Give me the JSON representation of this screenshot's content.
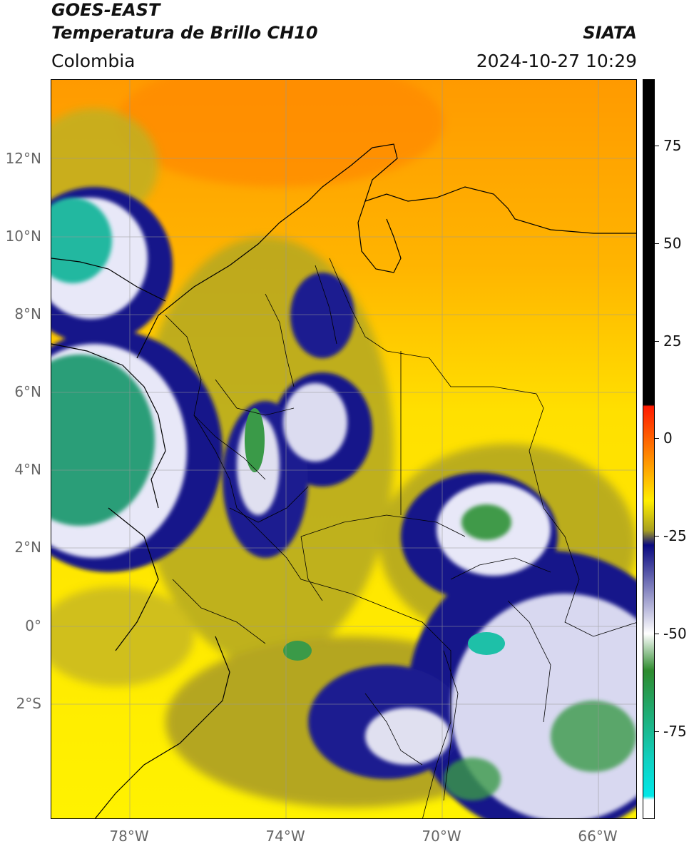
{
  "header": {
    "satellite": "GOES-EAST",
    "product": "Temperatura de Brillo CH10",
    "organization": "SIATA",
    "region": "Colombia",
    "datetime": "2024-10-27 10:29"
  },
  "map": {
    "lat_labels": [
      "12°N",
      "10°N",
      "8°N",
      "6°N",
      "4°N",
      "2°N",
      "0°",
      "2°S"
    ],
    "lon_labels": [
      "78°W",
      "74°W",
      "70°W",
      "66°W"
    ],
    "extent": {
      "lon_min": -80,
      "lon_max": -65,
      "lat_min": -5,
      "lat_max": 14
    }
  },
  "colorbar": {
    "labels": [
      "75",
      "50",
      "25",
      "0",
      "-25",
      "-50",
      "-75"
    ],
    "colors": {
      "warm_top": "#000000",
      "red": "#ff1a00",
      "orange": "#ff9a00",
      "yellow": "#ffee00",
      "olive": "#a8a020",
      "navy": "#0a0a80",
      "white": "#ffffff",
      "green": "#2e8b2e",
      "teal": "#10d0c0",
      "cyan": "#00e8e8"
    }
  }
}
